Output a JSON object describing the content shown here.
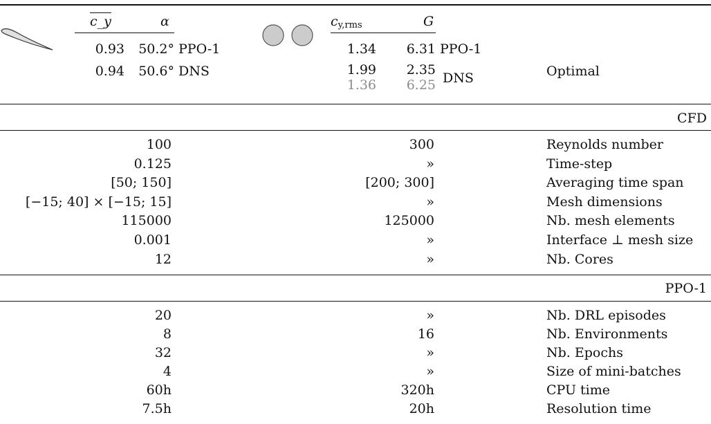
{
  "header": {
    "airfoil": {
      "col1_label": "c_y",
      "col2_label": "α",
      "rows": [
        {
          "cy": "0.93",
          "alpha": "50.2°",
          "label": "PPO-1"
        },
        {
          "cy": "0.94",
          "alpha": "50.6°",
          "label": "DNS"
        }
      ]
    },
    "cylinders": {
      "col1_label_base": "c",
      "col1_label_sub": "y,rms",
      "col2_label": "G",
      "rows": [
        {
          "cy": "1.34",
          "g": "6.31",
          "label": "PPO-1"
        },
        {
          "cy": "1.99",
          "g": "2.35",
          "label": "DNS"
        },
        {
          "cy": "1.36",
          "g": "6.25",
          "label": ""
        }
      ]
    },
    "right_label": "Optimal"
  },
  "sections": [
    {
      "title": "CFD",
      "rows": [
        {
          "a": "100",
          "b": "300",
          "label": "Reynolds number"
        },
        {
          "a": "0.125",
          "b": "»",
          "label": "Time-step"
        },
        {
          "a": "[50; 150]",
          "b": "[200; 300]",
          "label": "Averaging time span"
        },
        {
          "a": "[−15; 40] × [−15; 15]",
          "b": "»",
          "label": "Mesh dimensions"
        },
        {
          "a": "115000",
          "b": "125000",
          "label": "Nb. mesh elements"
        },
        {
          "a": "0.001",
          "b": "»",
          "label": "Interface ⊥ mesh size"
        },
        {
          "a": "12",
          "b": "»",
          "label": "Nb. Cores"
        }
      ]
    },
    {
      "title": "PPO-1",
      "rows": [
        {
          "a": "20",
          "b": "»",
          "label": "Nb. DRL episodes"
        },
        {
          "a": "8",
          "b": "16",
          "label": "Nb. Environments"
        },
        {
          "a": "32",
          "b": "»",
          "label": "Nb. Epochs"
        },
        {
          "a": "4",
          "b": "»",
          "label": "Size of mini-batches"
        },
        {
          "a": "60h",
          "b": "320h",
          "label": "CPU time"
        },
        {
          "a": "7.5h",
          "b": "20h",
          "label": "Resolution time"
        }
      ]
    }
  ]
}
